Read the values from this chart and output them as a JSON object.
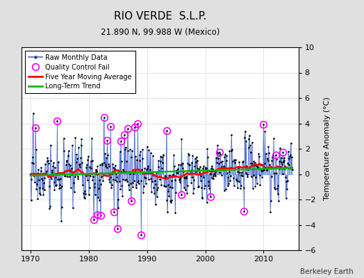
{
  "title": "RIO VERDE  S.L.P.",
  "subtitle": "21.890 N, 99.988 W (Mexico)",
  "ylabel": "Temperature Anomaly (°C)",
  "xlabel_credit": "Berkeley Earth",
  "ylim": [
    -6,
    10
  ],
  "xlim": [
    1968.5,
    2016
  ],
  "xticks": [
    1970,
    1980,
    1990,
    2000,
    2010
  ],
  "yticks": [
    -6,
    -4,
    -2,
    0,
    2,
    4,
    6,
    8,
    10
  ],
  "bg_color": "#e0e0e0",
  "plot_bg_color": "#ffffff",
  "seed": 17
}
